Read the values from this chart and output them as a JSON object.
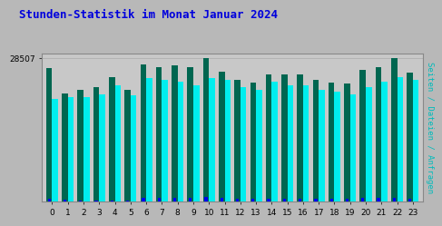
{
  "title": "Stunden-Statistik im Monat Januar 2024",
  "title_color": "#0000dd",
  "title_fontsize": 9,
  "ylabel_right": "Seiten / Dateien / Anfragen",
  "ylabel_right_color": "#00bbbb",
  "categories": [
    0,
    1,
    2,
    3,
    4,
    5,
    6,
    7,
    8,
    9,
    10,
    11,
    12,
    13,
    14,
    15,
    16,
    17,
    18,
    19,
    20,
    21,
    22,
    23
  ],
  "ytick_label": "28507",
  "background_color": "#b8b8b8",
  "plot_bg_color": "#c8c8c8",
  "bar_width": 0.38,
  "seiten": [
    26500,
    21500,
    22200,
    22800,
    24800,
    22300,
    27200,
    26800,
    27000,
    26800,
    28507,
    25800,
    24200,
    23600,
    25200,
    25200,
    25200,
    24200,
    23700,
    23400,
    26200,
    26700,
    28507,
    25700
  ],
  "dateien": [
    20500,
    20800,
    20800,
    21300,
    23200,
    21200,
    24500,
    24200,
    23800,
    23200,
    24500,
    24200,
    22800,
    22300,
    23800,
    23200,
    23200,
    22300,
    21800,
    21300,
    22800,
    23800,
    24800,
    24200
  ],
  "anfragen": [
    600,
    400,
    200,
    250,
    280,
    220,
    700,
    750,
    800,
    830,
    950,
    820,
    680,
    550,
    680,
    640,
    600,
    560,
    610,
    620,
    720,
    780,
    850,
    680
  ],
  "seiten_color": "#006650",
  "dateien_color": "#00eeee",
  "anfragen_color": "#0000ee",
  "ylim": [
    0,
    29500
  ],
  "grid_color": "#aaaaaa",
  "border_color": "#888888"
}
